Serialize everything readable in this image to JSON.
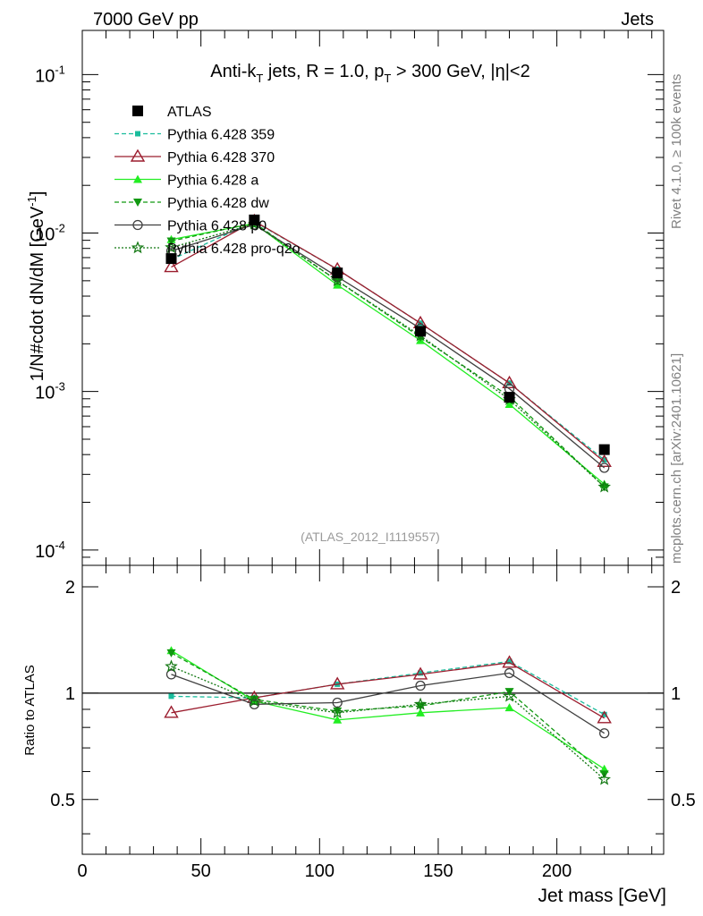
{
  "header": {
    "left": "7000 GeV pp",
    "right": "Jets"
  },
  "side_labels": {
    "rivet": "Rivet 4.1.0, ≥ 100k events",
    "mcplots": "mcplots.cern.ch [arXiv:2401.10621]"
  },
  "chart_data": [
    {
      "panel": "main",
      "type": "line",
      "title": "Anti-kT jets, R = 1.0, pT > 300 GeV, |η|<2",
      "title_parts": {
        "a": "Anti-k",
        "a_sub": "T",
        "b": " jets, R = 1.0, p",
        "b_sub": "T",
        "c": " > 300 GeV, |η|<2"
      },
      "ylabel": "1/N#cdot dN/dM [GeV-1]",
      "ylabel_parts": {
        "base": "1/N#cdot dN/dM [GeV",
        "sup": "-1",
        "end": "]"
      },
      "yscale": "log",
      "ylim": [
        8e-05,
        0.19
      ],
      "xlim": [
        0,
        245
      ],
      "ytick_labels": [
        {
          "value": 0.1,
          "base": "10",
          "exp": "-1"
        },
        {
          "value": 0.01,
          "base": "10",
          "exp": "-2"
        },
        {
          "value": 0.001,
          "base": "10",
          "exp": "-3"
        },
        {
          "value": 0.0001,
          "base": "10",
          "exp": "-4"
        }
      ],
      "watermark": "(ATLAS_2012_I1119557)",
      "legend_position": "top-left",
      "x": [
        37.5,
        72.5,
        107.5,
        142.5,
        180,
        220
      ],
      "series": [
        {
          "name": "ATLAS",
          "color": "#000000",
          "marker": "square",
          "line": "none",
          "values": [
            0.0069,
            0.0121,
            0.0056,
            0.0024,
            0.00092,
            0.00043
          ]
        },
        {
          "name": "Pythia 6.428 359",
          "color": "#1abc9c",
          "marker": "small-square",
          "line": "dashed",
          "values": [
            0.0068,
            0.0118,
            0.0059,
            0.0027,
            0.00113,
            0.00037
          ]
        },
        {
          "name": "Pythia 6.428 370",
          "color": "#9b1d2e",
          "marker": "open-triangle",
          "line": "solid",
          "values": [
            0.0061,
            0.0119,
            0.0059,
            0.0027,
            0.00113,
            0.00036
          ]
        },
        {
          "name": "Pythia 6.428 a",
          "color": "#22ee22",
          "marker": "triangle",
          "line": "solid",
          "values": [
            0.0091,
            0.0115,
            0.0047,
            0.0021,
            0.00083,
            0.00026
          ]
        },
        {
          "name": "Pythia 6.428 dw",
          "color": "#119911",
          "marker": "triangle-down",
          "line": "dashed",
          "values": [
            0.0089,
            0.0116,
            0.005,
            0.0022,
            0.00093,
            0.00025
          ]
        },
        {
          "name": "Pythia 6.428 p0",
          "color": "#404040",
          "marker": "open-circle",
          "line": "solid",
          "values": [
            0.0077,
            0.0113,
            0.0053,
            0.0025,
            0.00104,
            0.00033
          ]
        },
        {
          "name": "Pythia 6.428 pro-q2o",
          "color": "#117711",
          "marker": "open-star",
          "line": "dotted",
          "values": [
            0.0081,
            0.0114,
            0.005,
            0.00225,
            0.00089,
            0.00025
          ]
        }
      ]
    },
    {
      "panel": "ratio",
      "type": "line",
      "ylabel": "Ratio to ATLAS",
      "xlabel": "Jet mass [GeV]",
      "xlim": [
        0,
        245
      ],
      "ylim": [
        0.35,
        2.3
      ],
      "reference_line": 1,
      "x_tick_labels": [
        "0",
        "50",
        "100",
        "150",
        "200"
      ],
      "y_tick_labels": [
        "2",
        "1",
        "0.5"
      ],
      "x": [
        37.5,
        72.5,
        107.5,
        142.5,
        180,
        220
      ],
      "series": [
        {
          "name": "Pythia 6.428 359",
          "color": "#1abc9c",
          "marker": "small-square",
          "line": "dashed",
          "values": [
            0.98,
            0.97,
            1.06,
            1.14,
            1.23,
            0.87
          ]
        },
        {
          "name": "Pythia 6.428 370",
          "color": "#9b1d2e",
          "marker": "open-triangle",
          "line": "solid",
          "values": [
            0.88,
            0.97,
            1.06,
            1.13,
            1.22,
            0.85
          ]
        },
        {
          "name": "Pythia 6.428 a",
          "color": "#22ee22",
          "marker": "triangle",
          "line": "solid",
          "values": [
            1.32,
            0.95,
            0.84,
            0.88,
            0.91,
            0.61
          ]
        },
        {
          "name": "Pythia 6.428 dw",
          "color": "#119911",
          "marker": "triangle-down",
          "line": "dashed",
          "values": [
            1.3,
            0.96,
            0.89,
            0.92,
            1.01,
            0.59
          ]
        },
        {
          "name": "Pythia 6.428 p0",
          "color": "#404040",
          "marker": "open-circle",
          "line": "solid",
          "values": [
            1.13,
            0.93,
            0.94,
            1.05,
            1.14,
            0.77
          ]
        },
        {
          "name": "Pythia 6.428 pro-q2o",
          "color": "#117711",
          "marker": "open-star",
          "line": "dotted",
          "values": [
            1.19,
            0.95,
            0.88,
            0.93,
            0.98,
            0.57
          ]
        }
      ]
    }
  ]
}
